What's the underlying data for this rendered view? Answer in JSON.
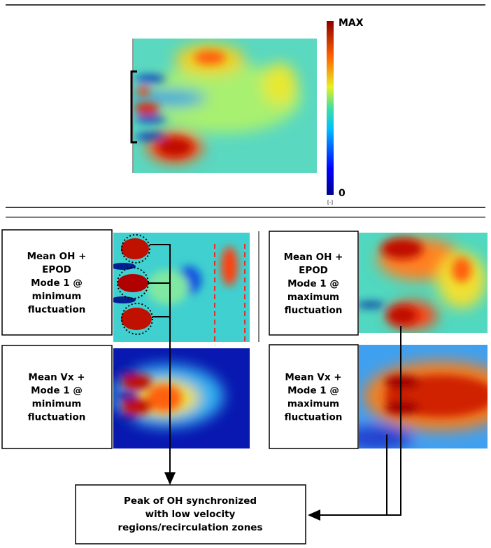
{
  "colorbar": {
    "max_label": "MAX",
    "min_label": "0",
    "unit": "[-]"
  },
  "panels": [
    {
      "label_lines": [
        "Mean OH +",
        "EPOD",
        "Mode 1 @",
        "minimum",
        "fluctuation"
      ]
    },
    {
      "label_lines": [
        "Mean OH +",
        "EPOD",
        "Mode 1 @",
        "maximum",
        "fluctuation"
      ]
    },
    {
      "label_lines": [
        "Mean Vx +",
        "Mode 1 @",
        "minimum",
        "fluctuation"
      ]
    },
    {
      "label_lines": [
        "Mean Vx +",
        "Mode 1 @",
        "maximum",
        "fluctuation"
      ]
    }
  ],
  "callout": {
    "lines": [
      "Peak of OH synchronized",
      "with low velocity",
      "regions/recirculation zones"
    ]
  }
}
